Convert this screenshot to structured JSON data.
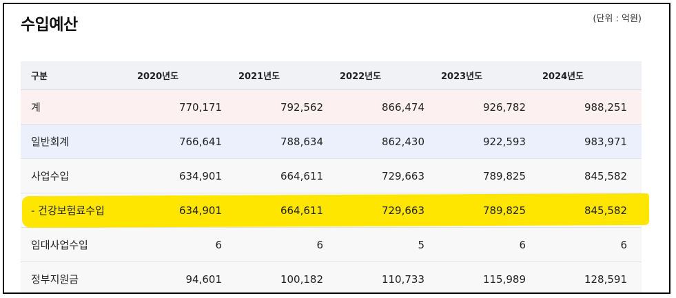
{
  "page": {
    "title": "수입예산",
    "unit_note": "(단위 : 억원)"
  },
  "table": {
    "headers": [
      "구분",
      "2020년도",
      "2021년도",
      "2022년도",
      "2023년도",
      "2024년도"
    ],
    "rows": [
      {
        "label": "계",
        "values": [
          "770,171",
          "792,562",
          "866,474",
          "926,782",
          "988,251"
        ]
      },
      {
        "label": "일반회계",
        "values": [
          "766,641",
          "788,634",
          "862,430",
          "922,593",
          "983,971"
        ]
      },
      {
        "label": "사업수입",
        "values": [
          "634,901",
          "664,611",
          "729,663",
          "789,825",
          "845,582"
        ]
      },
      {
        "label": "- 건강보험료수입",
        "values": [
          "634,901",
          "664,611",
          "729,663",
          "789,825",
          "845,582"
        ]
      },
      {
        "label": "임대사업수입",
        "values": [
          "6",
          "6",
          "5",
          "6",
          "6"
        ]
      },
      {
        "label": "정부지원금",
        "values": [
          "94,601",
          "100,182",
          "110,733",
          "115,989",
          "128,591"
        ]
      }
    ]
  },
  "colors": {
    "header_bg": "#f1f2f6",
    "total_row_bg": "#fcf0f0",
    "general_row_bg": "#ebf0fc",
    "highlight_marker": "#ffe600",
    "frame_border": "#000000"
  }
}
